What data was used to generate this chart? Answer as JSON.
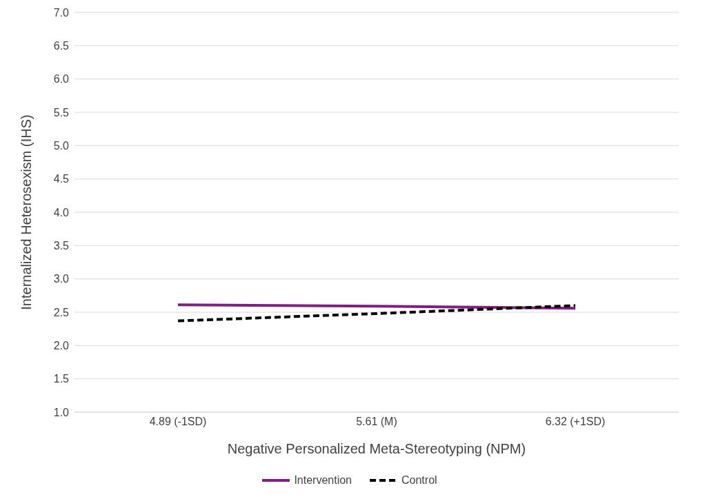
{
  "chart_data": {
    "type": "line",
    "xlabel": "Negative Personalized Meta-Stereotyping (NPM)",
    "ylabel": "Internalized Heterosexism (IHS)",
    "categories": [
      "4.89 (-1SD)",
      "5.61 (M)",
      "6.32 (+1SD)"
    ],
    "series": [
      {
        "name": "Intervention",
        "color": "#7f1f7f",
        "values": [
          2.61,
          2.59,
          2.56
        ],
        "line_style": "solid"
      },
      {
        "name": "Control",
        "color": "#000000",
        "values": [
          2.37,
          2.48,
          2.6
        ],
        "line_style": "dashed"
      }
    ],
    "ylim": [
      1,
      7
    ],
    "yticks": [
      {
        "value": 1,
        "label": "1.0"
      },
      {
        "value": 1.5,
        "label": "1.5"
      },
      {
        "value": 2,
        "label": "2.0"
      },
      {
        "value": 2.5,
        "label": "2.5"
      },
      {
        "value": 3,
        "label": "3.0"
      },
      {
        "value": 3.5,
        "label": "3.5"
      },
      {
        "value": 4,
        "label": "4.0"
      },
      {
        "value": 4.5,
        "label": "4.5"
      },
      {
        "value": 5,
        "label": "5.0"
      },
      {
        "value": 5.5,
        "label": "5.5"
      },
      {
        "value": 6,
        "label": "6.0"
      },
      {
        "value": 6.5,
        "label": "6.5"
      },
      {
        "value": 7,
        "label": "7.0"
      }
    ],
    "grid": "y",
    "legend": "bottom",
    "marker": "none"
  }
}
